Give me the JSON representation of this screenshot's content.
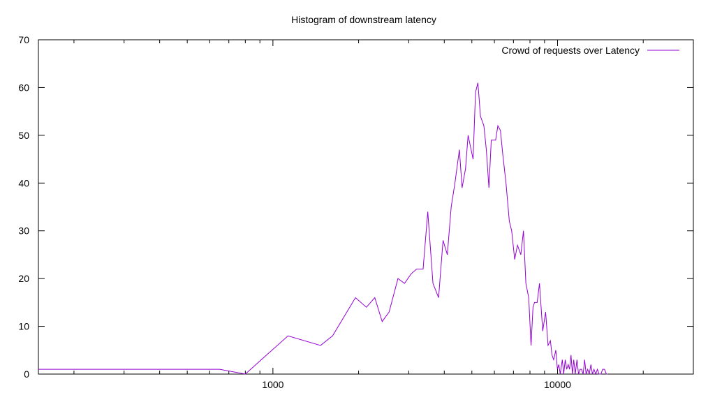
{
  "chart_data": {
    "type": "line",
    "title": "Histogram of downstream latency",
    "xlabel": "",
    "ylabel": "",
    "x_scale": "log",
    "xlim": [
      150,
      30000
    ],
    "ylim": [
      0,
      70
    ],
    "y_ticks": [
      0,
      10,
      20,
      30,
      40,
      50,
      60,
      70
    ],
    "x_ticks": [
      1000,
      10000
    ],
    "x_tick_labels": [
      "1000",
      "10000"
    ],
    "x_minor_ticks": [
      200,
      300,
      400,
      500,
      600,
      700,
      800,
      900,
      2000,
      3000,
      4000,
      5000,
      6000,
      7000,
      8000,
      9000,
      20000,
      30000
    ],
    "grid": false,
    "legend_position": "top-right",
    "series": [
      {
        "name": "Crowd of requests over Latency",
        "color": "#9400d3",
        "x": [
          150,
          650,
          800,
          950,
          1130,
          1470,
          1620,
          1950,
          2130,
          2280,
          2420,
          2560,
          2750,
          2900,
          3060,
          3200,
          3370,
          3500,
          3650,
          3820,
          3960,
          4100,
          4230,
          4360,
          4520,
          4620,
          4750,
          4850,
          5050,
          5150,
          5250,
          5360,
          5510,
          5620,
          5740,
          5850,
          6060,
          6170,
          6300,
          6420,
          6590,
          6770,
          6900,
          7070,
          7230,
          7430,
          7590,
          7740,
          7920,
          8070,
          8200,
          8300,
          8480,
          8640,
          8870,
          9080,
          9260,
          9440,
          9560,
          9690,
          9860,
          9990,
          10100,
          10220,
          10390,
          10510,
          10640,
          10770,
          10900,
          11020,
          11150,
          11280,
          11400,
          11540,
          11700,
          11850,
          12000,
          12140,
          12300,
          12450,
          12600,
          12760,
          12920,
          13100,
          13260,
          13430,
          13620,
          13800,
          14000,
          14200,
          14400,
          14620,
          14850,
          15000
        ],
        "values": [
          1,
          1,
          0,
          4,
          8,
          6,
          8,
          16,
          14,
          16,
          11,
          13,
          20,
          19,
          21,
          22,
          22,
          34,
          19,
          16,
          28,
          25,
          35,
          40,
          47,
          39,
          43,
          50,
          45,
          59,
          61,
          54,
          52,
          47,
          39,
          49,
          49,
          52,
          51,
          46,
          40,
          32,
          30,
          24,
          27,
          25,
          30,
          19,
          16,
          6,
          14,
          15,
          15,
          19,
          9,
          13,
          6,
          7,
          4,
          3,
          5,
          1,
          2,
          0,
          3,
          0,
          3,
          1,
          2,
          1,
          4,
          0,
          3,
          0,
          3,
          0,
          1,
          1,
          0,
          3,
          0,
          1,
          0,
          2,
          0,
          1,
          0,
          1,
          0,
          0,
          1,
          1,
          0,
          0
        ]
      }
    ]
  }
}
